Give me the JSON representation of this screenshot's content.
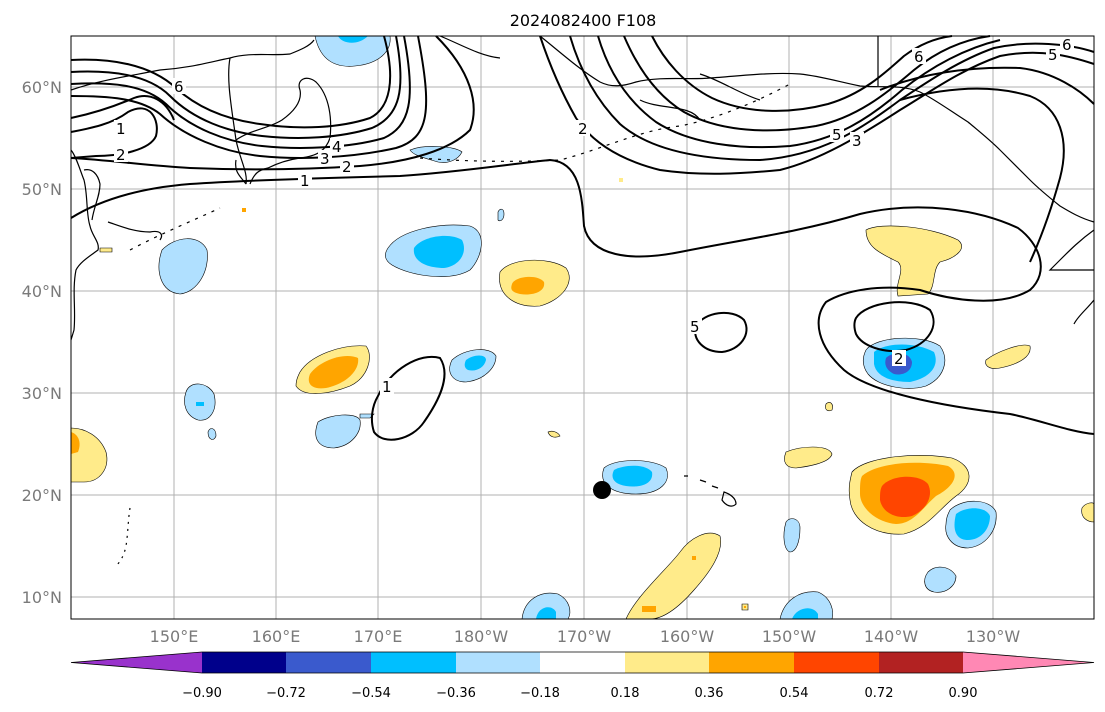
{
  "title": "2024082400 F108",
  "map": {
    "lat_ticks": [
      "60°N",
      "50°N",
      "40°N",
      "30°N",
      "20°N",
      "10°N"
    ],
    "lon_ticks": [
      "150°E",
      "160°E",
      "170°E",
      "180°W",
      "170°W",
      "160°W",
      "150°W",
      "140°W",
      "130°W"
    ],
    "contour_labels": [
      "6",
      "5",
      "4",
      "3",
      "2",
      "1",
      "2",
      "6",
      "5",
      "3",
      "2",
      "1",
      "2",
      "1",
      "6",
      "5"
    ],
    "marker": "storm-position-dot"
  },
  "colorbar": {
    "colors": [
      "#9932CC",
      "#00008B",
      "#3A5ACD",
      "#00BFFF",
      "#B0E0FF",
      "#FFFFFF",
      "#FFEB8A",
      "#FFA500",
      "#FF4500",
      "#B22222",
      "#FF88B4"
    ],
    "labels": [
      "−0.90",
      "−0.72",
      "−0.54",
      "−0.36",
      "−0.18",
      "0.18",
      "0.36",
      "0.54",
      "0.72",
      "0.90"
    ]
  }
}
